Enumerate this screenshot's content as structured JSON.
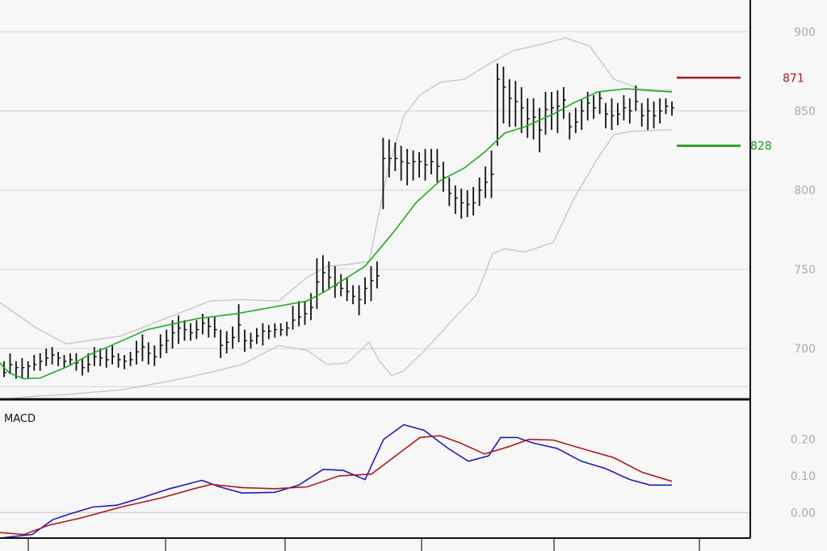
{
  "chart_data": [
    {
      "type": "line",
      "subtype": "ohlc-bollinger",
      "title": "",
      "xlabel": "",
      "ylabel": "",
      "ylim": [
        668,
        920
      ],
      "yticks": [
        {
          "value": 900,
          "label": "900"
        },
        {
          "value": 850,
          "label": "850"
        },
        {
          "value": 800,
          "label": "800"
        },
        {
          "value": 750,
          "label": "750"
        },
        {
          "value": 700,
          "label": "700"
        }
      ],
      "grid": true,
      "levels": [
        {
          "value": 871,
          "label": "871",
          "color": "#b01818"
        },
        {
          "value": 828,
          "label": "828",
          "color": "#1a9a1a"
        }
      ],
      "colors": {
        "bars": "#111111",
        "sma": "#22aa22",
        "bands": "#c8c8c8"
      },
      "bars": [
        [
          682,
          692,
          685
        ],
        [
          684,
          697,
          690
        ],
        [
          681,
          692,
          688
        ],
        [
          681,
          694,
          688
        ],
        [
          681,
          692,
          689
        ],
        [
          686,
          696,
          690
        ],
        [
          686,
          697,
          692
        ],
        [
          689,
          700,
          694
        ],
        [
          690,
          701,
          696
        ],
        [
          689,
          698,
          694
        ],
        [
          688,
          696,
          692
        ],
        [
          690,
          697,
          693
        ],
        [
          686,
          697,
          691
        ],
        [
          683,
          694,
          688
        ],
        [
          685,
          697,
          690
        ],
        [
          689,
          701,
          695
        ],
        [
          689,
          700,
          694
        ],
        [
          688,
          700,
          693
        ],
        [
          690,
          702,
          695
        ],
        [
          688,
          697,
          693
        ],
        [
          687,
          696,
          692
        ],
        [
          689,
          698,
          693
        ],
        [
          690,
          705,
          698
        ],
        [
          692,
          709,
          701
        ],
        [
          690,
          704,
          697
        ],
        [
          689,
          702,
          695
        ],
        [
          694,
          709,
          702
        ],
        [
          697,
          712,
          705
        ],
        [
          700,
          718,
          710
        ],
        [
          703,
          721,
          713
        ],
        [
          705,
          718,
          712
        ],
        [
          705,
          716,
          710
        ],
        [
          706,
          718,
          712
        ],
        [
          709,
          722,
          716
        ],
        [
          707,
          720,
          714
        ],
        [
          707,
          720,
          712
        ],
        [
          694,
          712,
          702
        ],
        [
          697,
          711,
          704
        ],
        [
          700,
          714,
          707
        ],
        [
          704,
          728,
          715
        ],
        [
          698,
          712,
          705
        ],
        [
          700,
          710,
          705
        ],
        [
          703,
          713,
          708
        ],
        [
          702,
          716,
          711
        ],
        [
          706,
          715,
          711
        ],
        [
          707,
          716,
          712
        ],
        [
          708,
          716,
          712
        ],
        [
          708,
          717,
          713
        ],
        [
          712,
          727,
          718
        ],
        [
          714,
          730,
          720
        ],
        [
          715,
          730,
          722
        ],
        [
          718,
          735,
          726
        ],
        [
          725,
          757,
          742
        ],
        [
          735,
          759,
          748
        ],
        [
          737,
          755,
          745
        ],
        [
          732,
          752,
          740
        ],
        [
          733,
          747,
          738
        ],
        [
          730,
          745,
          736
        ],
        [
          728,
          740,
          733
        ],
        [
          721,
          740,
          731
        ],
        [
          728,
          745,
          738
        ],
        [
          730,
          752,
          743
        ],
        [
          738,
          755,
          746
        ],
        [
          788,
          833,
          820
        ],
        [
          808,
          832,
          820
        ],
        [
          812,
          830,
          820
        ],
        [
          806,
          828,
          818
        ],
        [
          803,
          826,
          817
        ],
        [
          806,
          825,
          818
        ],
        [
          808,
          824,
          818
        ],
        [
          806,
          826,
          816
        ],
        [
          810,
          826,
          818
        ],
        [
          805,
          826,
          815
        ],
        [
          799,
          818,
          808
        ],
        [
          790,
          808,
          798
        ],
        [
          785,
          803,
          795
        ],
        [
          782,
          801,
          792
        ],
        [
          783,
          800,
          791
        ],
        [
          784,
          802,
          792
        ],
        [
          790,
          808,
          800
        ],
        [
          795,
          815,
          805
        ],
        [
          795,
          825,
          810
        ],
        [
          828,
          880,
          870
        ],
        [
          842,
          878,
          865
        ],
        [
          840,
          870,
          858
        ],
        [
          840,
          869,
          856
        ],
        [
          836,
          865,
          852
        ],
        [
          833,
          858,
          845
        ],
        [
          832,
          858,
          846
        ],
        [
          824,
          852,
          838
        ],
        [
          835,
          862,
          851
        ],
        [
          838,
          862,
          852
        ],
        [
          836,
          863,
          853
        ],
        [
          845,
          865,
          857
        ],
        [
          832,
          849,
          840
        ],
        [
          836,
          852,
          843
        ],
        [
          838,
          857,
          850
        ],
        [
          844,
          862,
          855
        ],
        [
          845,
          860,
          852
        ],
        [
          848,
          862,
          858
        ],
        [
          839,
          855,
          848
        ],
        [
          838,
          858,
          847
        ],
        [
          841,
          855,
          848
        ],
        [
          844,
          860,
          852
        ],
        [
          842,
          858,
          850
        ],
        [
          850,
          866,
          856
        ],
        [
          840,
          855,
          847
        ],
        [
          838,
          858,
          850
        ],
        [
          839,
          856,
          847
        ],
        [
          842,
          858,
          850
        ],
        [
          848,
          858,
          853
        ],
        [
          847,
          856,
          852
        ]
      ],
      "sma": [
        [
          0,
          691
        ],
        [
          4,
          688.5
        ],
        [
          12,
          684.5
        ],
        [
          30,
          681
        ],
        [
          50,
          681.5
        ],
        [
          85,
          689
        ],
        [
          110,
          696
        ],
        [
          142,
          703
        ],
        [
          182,
          712
        ],
        [
          245,
          719
        ],
        [
          292,
          722
        ],
        [
          380,
          730
        ],
        [
          402,
          736
        ],
        [
          424,
          743
        ],
        [
          452,
          752
        ],
        [
          485,
          772
        ],
        [
          515,
          792
        ],
        [
          545,
          806
        ],
        [
          575,
          814
        ],
        [
          600,
          824
        ],
        [
          625,
          836
        ],
        [
          650,
          840
        ],
        [
          685,
          848
        ],
        [
          710,
          855
        ],
        [
          740,
          862
        ],
        [
          775,
          864
        ],
        [
          800,
          863
        ],
        [
          832,
          862
        ]
      ],
      "upper_band": [
        [
          0,
          729
        ],
        [
          45,
          713
        ],
        [
          82,
          703
        ],
        [
          150,
          708
        ],
        [
          215,
          721
        ],
        [
          260,
          730
        ],
        [
          300,
          731
        ],
        [
          345,
          730
        ],
        [
          380,
          745
        ],
        [
          405,
          752
        ],
        [
          430,
          753
        ],
        [
          457,
          755
        ],
        [
          480,
          812
        ],
        [
          500,
          847
        ],
        [
          520,
          860
        ],
        [
          545,
          868
        ],
        [
          575,
          870
        ],
        [
          600,
          878
        ],
        [
          635,
          888
        ],
        [
          670,
          892
        ],
        [
          700,
          896
        ],
        [
          730,
          891
        ],
        [
          760,
          870
        ],
        [
          792,
          864
        ],
        [
          820,
          863
        ],
        [
          832,
          863
        ]
      ],
      "lower_band": [
        [
          0,
          668
        ],
        [
          45,
          670
        ],
        [
          82,
          671
        ],
        [
          150,
          674
        ],
        [
          215,
          680
        ],
        [
          260,
          685
        ],
        [
          300,
          690
        ],
        [
          345,
          702
        ],
        [
          380,
          699
        ],
        [
          405,
          690
        ],
        [
          430,
          691
        ],
        [
          457,
          704
        ],
        [
          470,
          692
        ],
        [
          485,
          683
        ],
        [
          500,
          686
        ],
        [
          530,
          701
        ],
        [
          560,
          718
        ],
        [
          590,
          734
        ],
        [
          610,
          760
        ],
        [
          625,
          763
        ],
        [
          650,
          761
        ],
        [
          685,
          767
        ],
        [
          710,
          794
        ],
        [
          740,
          820
        ],
        [
          760,
          835
        ],
        [
          780,
          837
        ],
        [
          820,
          838
        ],
        [
          832,
          838
        ]
      ]
    },
    {
      "type": "line",
      "title": "MACD",
      "xlabel": "",
      "ylabel": "",
      "ylim": [
        -0.07,
        0.305
      ],
      "yticks": [
        {
          "value": 0.2,
          "label": "0.20"
        },
        {
          "value": 0.1,
          "label": "0.10"
        },
        {
          "value": 0.0,
          "label": "0.00"
        }
      ],
      "grid": true,
      "series": [
        {
          "color": "#1c1cb4",
          "points": [
            [
              0,
              -0.07
            ],
            [
              20,
              -0.065
            ],
            [
              40,
              -0.06
            ],
            [
              65,
              -0.02
            ],
            [
              85,
              -0.005
            ],
            [
              115,
              0.015
            ],
            [
              145,
              0.02
            ],
            [
              175,
              0.04
            ],
            [
              210,
              0.065
            ],
            [
              250,
              0.088
            ],
            [
              272,
              0.07
            ],
            [
              300,
              0.053
            ],
            [
              340,
              0.055
            ],
            [
              370,
              0.075
            ],
            [
              400,
              0.118
            ],
            [
              425,
              0.115
            ],
            [
              452,
              0.09
            ],
            [
              475,
              0.2
            ],
            [
              500,
              0.24
            ],
            [
              525,
              0.225
            ],
            [
              555,
              0.175
            ],
            [
              580,
              0.14
            ],
            [
              605,
              0.155
            ],
            [
              620,
              0.205
            ],
            [
              640,
              0.205
            ],
            [
              660,
              0.19
            ],
            [
              690,
              0.175
            ],
            [
              720,
              0.14
            ],
            [
              750,
              0.12
            ],
            [
              780,
              0.09
            ],
            [
              805,
              0.075
            ],
            [
              832,
              0.075
            ]
          ]
        },
        {
          "color": "#b01818",
          "points": [
            [
              0,
              -0.055
            ],
            [
              30,
              -0.06
            ],
            [
              60,
              -0.035
            ],
            [
              100,
              -0.015
            ],
            [
              150,
              0.015
            ],
            [
              200,
              0.04
            ],
            [
              240,
              0.065
            ],
            [
              262,
              0.077
            ],
            [
              300,
              0.068
            ],
            [
              340,
              0.065
            ],
            [
              380,
              0.07
            ],
            [
              420,
              0.1
            ],
            [
              460,
              0.105
            ],
            [
              490,
              0.155
            ],
            [
              520,
              0.205
            ],
            [
              545,
              0.21
            ],
            [
              570,
              0.19
            ],
            [
              600,
              0.16
            ],
            [
              630,
              0.18
            ],
            [
              655,
              0.2
            ],
            [
              685,
              0.198
            ],
            [
              720,
              0.175
            ],
            [
              760,
              0.15
            ],
            [
              795,
              0.11
            ],
            [
              832,
              0.085
            ]
          ]
        }
      ]
    }
  ]
}
